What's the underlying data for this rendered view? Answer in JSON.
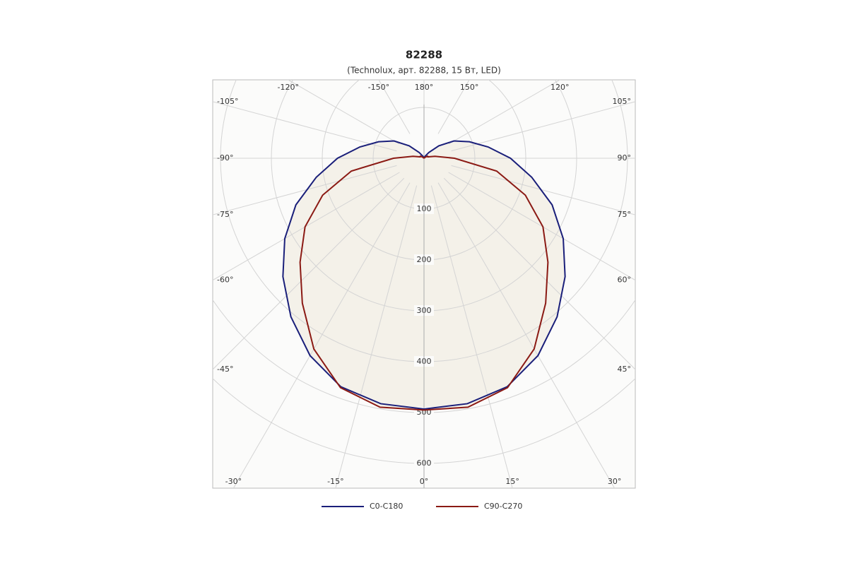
{
  "chart_data": {
    "type": "polar",
    "title": "82288",
    "subtitle": "(Technolux, арт. 82288, 15 Вт, LED)",
    "angles": [
      -180,
      -170,
      -160,
      -150,
      -140,
      -130,
      -120,
      -110,
      -100,
      -90,
      -80,
      -70,
      -60,
      -50,
      -40,
      -30,
      -20,
      -10,
      0,
      10,
      20,
      30,
      40,
      50,
      60,
      70,
      80,
      90,
      100,
      110,
      120,
      130,
      140,
      150,
      160,
      170,
      180
    ],
    "series": [
      {
        "name": "C0-C180",
        "color": "#1a1f7a",
        "values": [
          0,
          0,
          2,
          5,
          15,
          38,
          68,
          95,
          128,
          170,
          215,
          268,
          316,
          362,
          407,
          448,
          478,
          490,
          493,
          490,
          478,
          448,
          407,
          362,
          316,
          268,
          215,
          170,
          128,
          95,
          68,
          38,
          15,
          5,
          2,
          0,
          0
        ]
      },
      {
        "name": "C90-C270",
        "color": "#8b1a14",
        "values": [
          0,
          0,
          0,
          0,
          0,
          3,
          8,
          8,
          22,
          60,
          145,
          212,
          270,
          318,
          372,
          433,
          480,
          497,
          495,
          497,
          480,
          433,
          372,
          318,
          270,
          212,
          145,
          60,
          22,
          8,
          8,
          3,
          0,
          0,
          0,
          0,
          0
        ]
      }
    ],
    "rlim": [
      0,
      800
    ],
    "rticks": [
      100,
      200,
      300,
      400,
      500,
      600
    ],
    "angle_ticks": [
      {
        "value": 0,
        "label": "0°"
      },
      {
        "value": 15,
        "label": "15°"
      },
      {
        "value": 30,
        "label": "30°"
      },
      {
        "value": 45,
        "label": "45°"
      },
      {
        "value": 60,
        "label": "60°"
      },
      {
        "value": 75,
        "label": "75°"
      },
      {
        "value": 90,
        "label": "90°"
      },
      {
        "value": 105,
        "label": "105°"
      },
      {
        "value": 120,
        "label": "120°"
      },
      {
        "value": 150,
        "label": "150°"
      },
      {
        "value": 180,
        "label": "180°"
      },
      {
        "value": -150,
        "label": "-150°"
      },
      {
        "value": -120,
        "label": "-120°"
      },
      {
        "value": -105,
        "label": "-105°"
      },
      {
        "value": -90,
        "label": "-90°"
      },
      {
        "value": -75,
        "label": "-75°"
      },
      {
        "value": -60,
        "label": "-60°"
      },
      {
        "value": -45,
        "label": "-45°"
      },
      {
        "value": -30,
        "label": "-30°"
      },
      {
        "value": -15,
        "label": "-15°"
      }
    ]
  }
}
